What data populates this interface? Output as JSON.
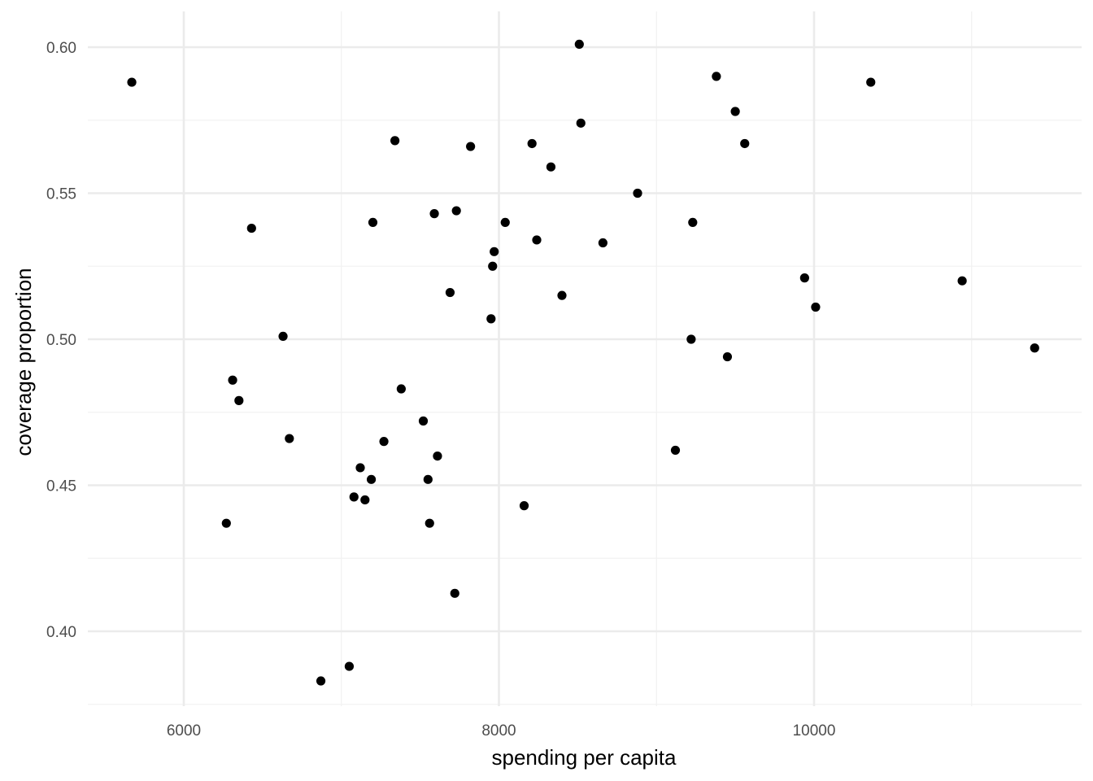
{
  "chart_data": {
    "type": "scatter",
    "title": "",
    "xlabel": "spending per capita",
    "ylabel": "coverage proportion",
    "xlim": [
      5400,
      11700
    ],
    "ylim": [
      0.375,
      0.612
    ],
    "x_ticks": [
      6000,
      8000,
      10000
    ],
    "x_tick_labels": [
      "6000",
      "8000",
      "10000"
    ],
    "x_minor_ticks": [
      5000,
      7000,
      9000,
      11000
    ],
    "y_ticks": [
      0.4,
      0.45,
      0.5,
      0.55,
      0.6
    ],
    "y_tick_labels": [
      "0.40",
      "0.45",
      "0.50",
      "0.55",
      "0.60"
    ],
    "y_minor_ticks": [
      0.375,
      0.425,
      0.475,
      0.525,
      0.575
    ],
    "grid": true,
    "legend": "none",
    "colors": {
      "point": "#000000",
      "grid_major": "#ebebeb",
      "grid_minor": "#f2f2f2",
      "tick_label": "#4d4d4d",
      "axis_title": "#000000",
      "background": "#ffffff"
    },
    "x": [
      5670,
      6430,
      6310,
      6350,
      6630,
      6270,
      6670,
      6870,
      7050,
      7080,
      7120,
      7150,
      7190,
      7200,
      7270,
      7340,
      7380,
      7520,
      7550,
      7560,
      7590,
      7610,
      7690,
      7720,
      7730,
      7820,
      7950,
      7960,
      7970,
      8040,
      8160,
      8210,
      8240,
      8330,
      8400,
      8510,
      8520,
      8660,
      8880,
      9120,
      9220,
      9230,
      9380,
      9450,
      9500,
      9560,
      9940,
      10010,
      10360,
      10940,
      11400
    ],
    "y": [
      0.588,
      0.538,
      0.486,
      0.479,
      0.501,
      0.437,
      0.466,
      0.383,
      0.388,
      0.446,
      0.456,
      0.445,
      0.452,
      0.54,
      0.465,
      0.568,
      0.483,
      0.472,
      0.452,
      0.437,
      0.543,
      0.46,
      0.516,
      0.413,
      0.544,
      0.566,
      0.507,
      0.525,
      0.53,
      0.54,
      0.443,
      0.567,
      0.534,
      0.559,
      0.515,
      0.601,
      0.574,
      0.533,
      0.55,
      0.462,
      0.5,
      0.54,
      0.59,
      0.494,
      0.578,
      0.567,
      0.521,
      0.511,
      0.588,
      0.52,
      0.497
    ]
  }
}
